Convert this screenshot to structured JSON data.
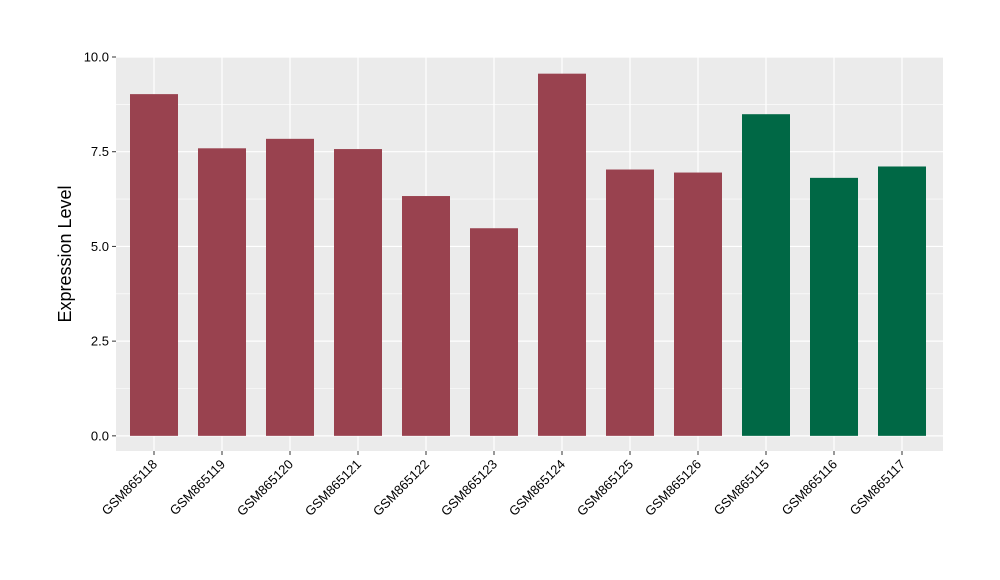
{
  "chart_data": {
    "type": "bar",
    "title": "",
    "xlabel": "",
    "ylabel": "Expression Level",
    "ylim": [
      -0.4,
      10.0
    ],
    "yticks": [
      "0.0",
      "2.5",
      "5.0",
      "7.5",
      "10.0"
    ],
    "ytick_values": [
      0,
      2.5,
      5,
      7.5,
      10
    ],
    "grid": true,
    "legend": "none",
    "categories": [
      "GSM865118",
      "GSM865119",
      "GSM865120",
      "GSM865121",
      "GSM865122",
      "GSM865123",
      "GSM865124",
      "GSM865125",
      "GSM865126",
      "GSM865115",
      "GSM865116",
      "GSM865117"
    ],
    "values": [
      9.02,
      7.59,
      7.84,
      7.57,
      6.33,
      5.48,
      9.56,
      7.03,
      6.95,
      8.49,
      6.81,
      7.11
    ],
    "groups": [
      0,
      0,
      0,
      0,
      0,
      0,
      0,
      0,
      0,
      1,
      1,
      1
    ],
    "colors": {
      "group_0": "#99424f",
      "group_1": "#006845",
      "panel": "#ebebeb",
      "grid": "#ffffff"
    }
  }
}
